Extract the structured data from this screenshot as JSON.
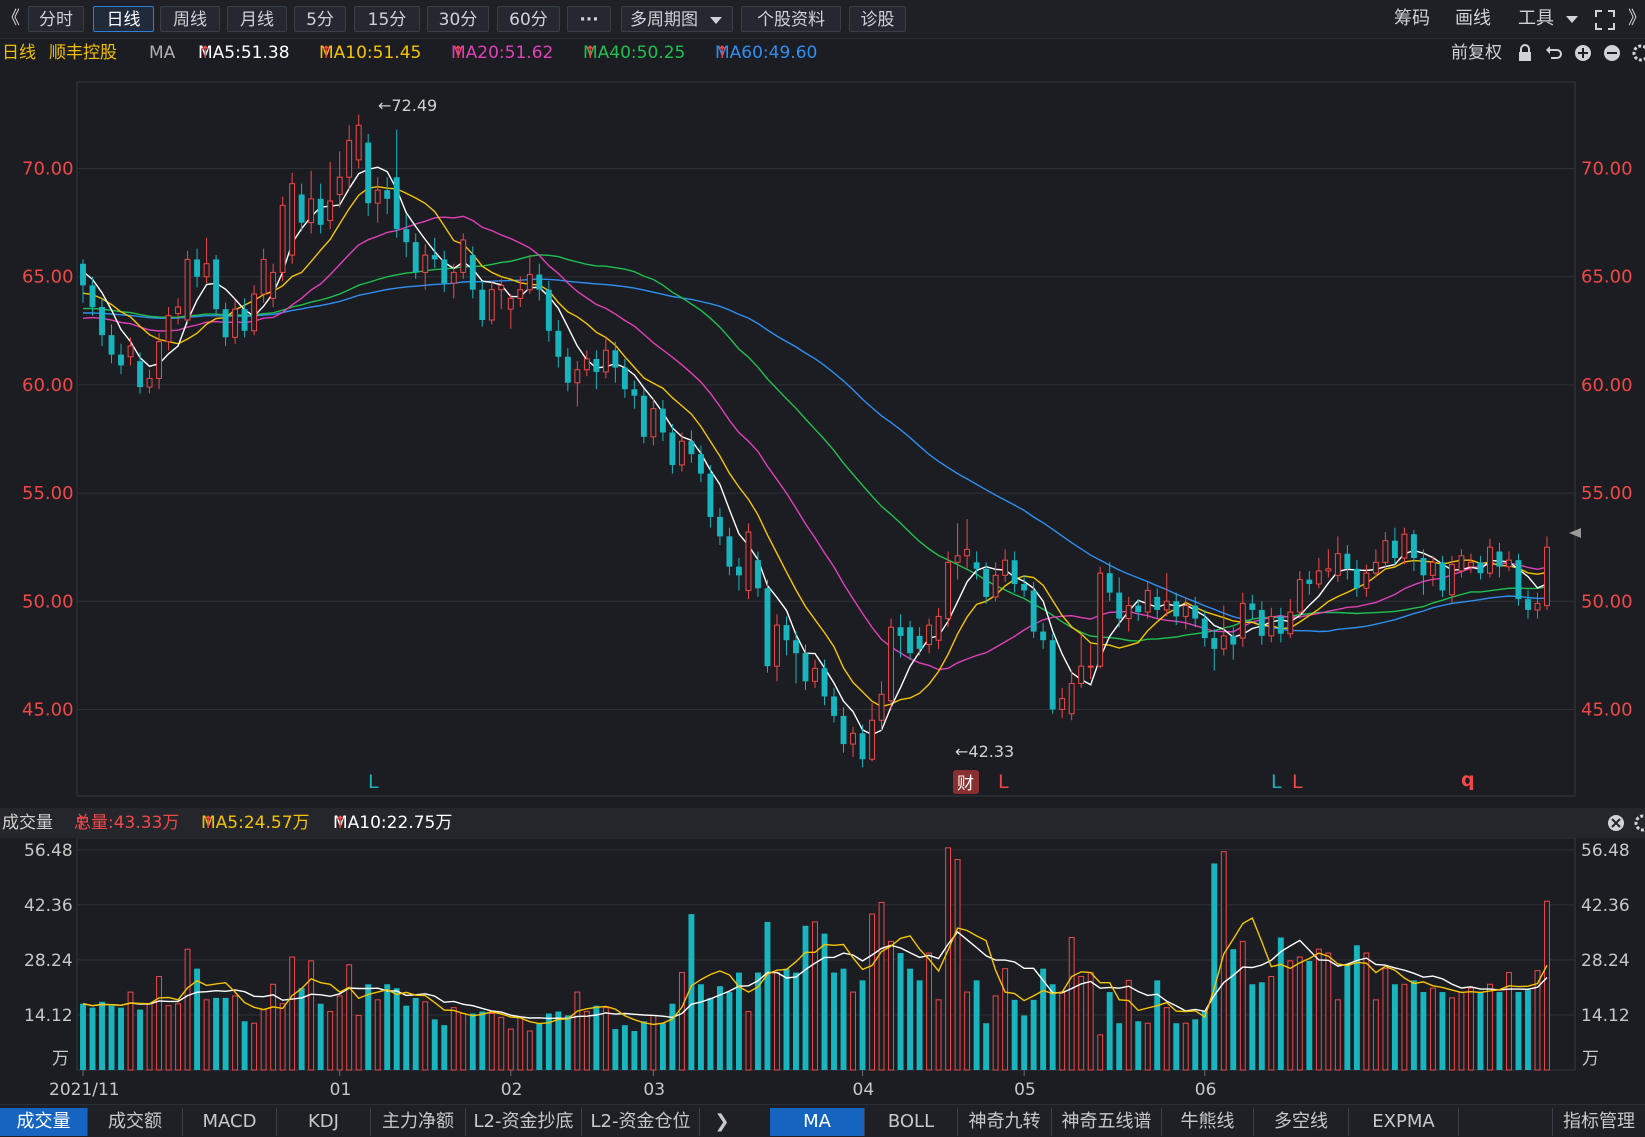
{
  "toolbar": {
    "collapse_glyph": "《",
    "expand_glyph": "》",
    "periods": [
      "分时",
      "日线",
      "周线",
      "月线",
      "5分",
      "15分",
      "30分",
      "60分"
    ],
    "more_label": "···",
    "multi_period_label": "多周期图",
    "profile_label": "个股资料",
    "diagnose_label": "诊股",
    "chips_label": "筹码",
    "draw_label": "画线",
    "tools_label": "工具"
  },
  "legend": {
    "period": "日线",
    "stock_name": "顺丰控股",
    "ma_label": "MA",
    "ma5": "MA5:51.38",
    "ma10": "MA10:51.45",
    "ma20": "MA20:51.62",
    "ma40": "MA40:50.25",
    "ma60": "MA60:49.60",
    "adjust_label": "前复权",
    "colors": {
      "ma5": "#ffffff",
      "ma10": "#f5c400",
      "ma20": "#e040b8",
      "ma40": "#20c050",
      "ma60": "#2f8ff0",
      "up": "#f04848",
      "down": "#19b5bf"
    }
  },
  "price_axis": {
    "ticks": [
      "70.00",
      "65.00",
      "60.00",
      "55.00",
      "50.00",
      "45.00"
    ],
    "tick_values": [
      70,
      65,
      60,
      55,
      50,
      45
    ],
    "ylim": [
      41,
      74
    ]
  },
  "annotations": {
    "high": "←72.49",
    "low": "←42.33",
    "fin_badge": "财",
    "markers": [
      "L",
      "L",
      "L",
      "L",
      "q"
    ]
  },
  "volume": {
    "title": "成交量",
    "total": "总量:43.33万",
    "ma5": "MA5:24.57万",
    "ma10": "MA10:22.75万",
    "ticks": [
      "56.48",
      "42.36",
      "28.24",
      "14.12"
    ],
    "tick_values": [
      56.48,
      42.36,
      28.24,
      14.12
    ],
    "unit": "万"
  },
  "date_axis": {
    "labels": [
      "2021/11",
      "01",
      "02",
      "03",
      "04",
      "05",
      "06"
    ]
  },
  "bottom_tabs": {
    "left": [
      "成交量",
      "成交额",
      "MACD",
      "KDJ",
      "主力净额",
      "L2-资金抄底",
      "L2-资金仓位"
    ],
    "arrow": "❯",
    "right": [
      "MA",
      "BOLL",
      "神奇九转",
      "神奇五线谱",
      "牛熊线",
      "多空线",
      "EXPMA"
    ],
    "manage": "指标管理"
  },
  "chart_data": {
    "type": "candlestick",
    "title": "顺丰控股 日线",
    "ylim": [
      41,
      74
    ],
    "high_label": 72.49,
    "low_label": 42.33,
    "candles": [
      [
        65.6,
        64.6,
        65.8,
        63.8
      ],
      [
        64.6,
        63.6,
        65.0,
        63.2
      ],
      [
        63.6,
        62.3,
        64.0,
        61.8
      ],
      [
        62.3,
        61.4,
        62.8,
        61.0
      ],
      [
        61.4,
        60.9,
        61.9,
        60.5
      ],
      [
        61.3,
        61.8,
        62.2,
        60.9
      ],
      [
        61.1,
        59.9,
        61.5,
        59.6
      ],
      [
        59.9,
        60.3,
        60.7,
        59.6
      ],
      [
        60.3,
        62.0,
        62.4,
        59.8
      ],
      [
        62.0,
        63.2,
        63.6,
        61.6
      ],
      [
        63.3,
        63.6,
        64.0,
        62.8
      ],
      [
        63.0,
        65.8,
        66.2,
        62.8
      ],
      [
        65.8,
        65.0,
        66.3,
        64.5
      ],
      [
        65.0,
        65.6,
        66.8,
        64.7
      ],
      [
        65.8,
        63.5,
        66.0,
        63.2
      ],
      [
        63.5,
        62.2,
        63.8,
        61.8
      ],
      [
        62.2,
        63.5,
        63.9,
        61.9
      ],
      [
        63.5,
        62.5,
        64.0,
        62.2
      ],
      [
        62.5,
        64.2,
        64.6,
        62.3
      ],
      [
        64.2,
        65.8,
        66.3,
        63.8
      ],
      [
        64.0,
        65.2,
        65.6,
        63.6
      ],
      [
        65.2,
        68.3,
        68.7,
        64.8
      ],
      [
        66.0,
        69.3,
        69.8,
        65.6
      ],
      [
        68.8,
        67.5,
        69.3,
        67.1
      ],
      [
        67.5,
        68.6,
        69.9,
        67.0
      ],
      [
        68.6,
        67.4,
        69.3,
        67.0
      ],
      [
        67.6,
        68.5,
        70.3,
        67.2
      ],
      [
        68.8,
        69.6,
        70.8,
        68.2
      ],
      [
        69.6,
        71.3,
        72.0,
        69.0
      ],
      [
        70.4,
        72.0,
        72.49,
        70.0
      ],
      [
        71.2,
        68.4,
        71.6,
        67.8
      ],
      [
        68.4,
        69.0,
        69.6,
        67.5
      ],
      [
        69.0,
        68.6,
        69.6,
        67.9
      ],
      [
        69.6,
        67.2,
        71.8,
        66.8
      ],
      [
        67.2,
        66.6,
        67.9,
        65.9
      ],
      [
        66.6,
        65.2,
        67.0,
        64.9
      ],
      [
        65.2,
        66.0,
        66.5,
        64.4
      ],
      [
        66.0,
        65.8,
        66.8,
        65.4
      ],
      [
        65.8,
        64.7,
        66.2,
        64.3
      ],
      [
        64.7,
        65.2,
        65.6,
        64.0
      ],
      [
        65.2,
        66.7,
        67.0,
        64.9
      ],
      [
        66.0,
        64.4,
        66.4,
        64.0
      ],
      [
        64.4,
        63.0,
        64.8,
        62.7
      ],
      [
        63.0,
        64.4,
        64.8,
        62.8
      ],
      [
        64.4,
        64.6,
        64.9,
        63.5
      ],
      [
        63.5,
        64.0,
        64.2,
        62.6
      ],
      [
        64.0,
        64.4,
        65.0,
        63.6
      ],
      [
        64.4,
        65.1,
        66.0,
        64.2
      ],
      [
        65.1,
        64.4,
        65.6,
        63.9
      ],
      [
        64.4,
        62.5,
        64.8,
        62.0
      ],
      [
        62.5,
        61.3,
        63.0,
        60.8
      ],
      [
        61.3,
        60.1,
        61.7,
        59.7
      ],
      [
        60.1,
        60.7,
        61.1,
        59.0
      ],
      [
        60.7,
        61.2,
        61.6,
        60.4
      ],
      [
        61.2,
        60.6,
        61.6,
        59.8
      ],
      [
        60.6,
        61.6,
        62.2,
        60.3
      ],
      [
        61.6,
        60.8,
        62.0,
        60.1
      ],
      [
        60.8,
        59.8,
        61.2,
        59.4
      ],
      [
        59.8,
        59.5,
        60.2,
        58.9
      ],
      [
        59.5,
        57.6,
        59.8,
        57.3
      ],
      [
        57.6,
        58.9,
        59.4,
        57.2
      ],
      [
        58.9,
        57.8,
        59.3,
        57.4
      ],
      [
        57.8,
        56.3,
        58.2,
        55.9
      ],
      [
        56.3,
        57.4,
        57.8,
        56.0
      ],
      [
        57.4,
        56.8,
        57.9,
        56.4
      ],
      [
        56.8,
        55.9,
        57.2,
        55.5
      ],
      [
        55.9,
        53.9,
        56.3,
        53.4
      ],
      [
        53.9,
        53.0,
        54.3,
        52.6
      ],
      [
        53.0,
        51.6,
        53.4,
        51.2
      ],
      [
        51.6,
        51.2,
        52.0,
        50.5
      ],
      [
        50.5,
        53.2,
        53.6,
        50.1
      ],
      [
        51.9,
        50.6,
        52.3,
        50.2
      ],
      [
        50.6,
        47.0,
        51.0,
        46.7
      ],
      [
        47.0,
        48.9,
        49.4,
        46.3
      ],
      [
        48.9,
        48.2,
        49.3,
        47.5
      ],
      [
        48.2,
        47.6,
        48.6,
        46.2
      ],
      [
        47.6,
        46.3,
        48.0,
        45.9
      ],
      [
        46.3,
        46.9,
        47.3,
        46.0
      ],
      [
        46.9,
        45.6,
        47.3,
        45.2
      ],
      [
        45.6,
        44.7,
        46.0,
        44.4
      ],
      [
        44.7,
        43.4,
        45.1,
        43.0
      ],
      [
        43.4,
        43.9,
        44.2,
        42.8
      ],
      [
        43.9,
        42.7,
        44.3,
        42.33
      ],
      [
        42.7,
        44.5,
        45.3,
        42.6
      ],
      [
        44.5,
        45.7,
        46.3,
        44.0
      ],
      [
        45.4,
        48.8,
        49.2,
        45.0
      ],
      [
        48.8,
        48.4,
        49.4,
        47.4
      ],
      [
        48.8,
        47.6,
        49.1,
        47.3
      ],
      [
        48.4,
        47.8,
        48.8,
        47.5
      ],
      [
        48.0,
        48.9,
        49.2,
        47.6
      ],
      [
        48.2,
        49.3,
        49.7,
        47.8
      ],
      [
        49.2,
        51.8,
        52.3,
        48.8
      ],
      [
        51.8,
        52.1,
        53.6,
        51.0
      ],
      [
        52.1,
        52.4,
        53.8,
        51.5
      ],
      [
        51.8,
        51.5,
        52.3,
        51.0
      ],
      [
        51.5,
        50.2,
        51.8,
        49.9
      ],
      [
        50.2,
        51.2,
        51.8,
        50.0
      ],
      [
        51.2,
        51.9,
        52.4,
        50.9
      ],
      [
        51.9,
        50.8,
        52.3,
        50.4
      ],
      [
        50.8,
        50.5,
        51.2,
        50.2
      ],
      [
        50.5,
        48.6,
        50.9,
        48.3
      ],
      [
        48.6,
        48.2,
        49.0,
        47.8
      ],
      [
        48.2,
        45.0,
        48.5,
        44.8
      ],
      [
        45.0,
        45.5,
        46.0,
        44.6
      ],
      [
        44.8,
        46.2,
        46.8,
        44.5
      ],
      [
        46.2,
        47.0,
        48.5,
        46.0
      ],
      [
        47.0,
        47.0,
        48.0,
        46.4
      ],
      [
        47.0,
        51.3,
        51.6,
        46.9
      ],
      [
        51.3,
        50.4,
        51.8,
        50.0
      ],
      [
        50.4,
        49.2,
        51.1,
        48.8
      ],
      [
        49.2,
        49.8,
        50.2,
        48.6
      ],
      [
        49.8,
        49.5,
        50.1,
        49.1
      ],
      [
        49.5,
        50.5,
        50.9,
        49.2
      ],
      [
        50.2,
        49.6,
        50.6,
        49.2
      ],
      [
        49.6,
        50.0,
        51.3,
        49.3
      ],
      [
        50.0,
        49.3,
        50.4,
        48.9
      ],
      [
        49.3,
        49.8,
        50.2,
        48.7
      ],
      [
        49.8,
        49.2,
        50.2,
        48.8
      ],
      [
        49.2,
        48.3,
        49.6,
        47.9
      ],
      [
        48.3,
        47.8,
        48.7,
        46.8
      ],
      [
        47.8,
        48.4,
        49.8,
        47.5
      ],
      [
        48.4,
        48.0,
        48.8,
        47.3
      ],
      [
        48.3,
        49.9,
        50.4,
        47.9
      ],
      [
        49.9,
        49.6,
        50.3,
        49.2
      ],
      [
        49.6,
        48.4,
        50.0,
        48.0
      ],
      [
        48.4,
        49.3,
        49.7,
        48.1
      ],
      [
        49.3,
        48.5,
        49.7,
        48.1
      ],
      [
        48.5,
        49.5,
        50.1,
        48.3
      ],
      [
        49.5,
        51.0,
        51.4,
        49.2
      ],
      [
        51.0,
        50.8,
        51.4,
        50.3
      ],
      [
        50.8,
        51.4,
        52.0,
        50.6
      ],
      [
        51.4,
        51.5,
        52.4,
        51.1
      ],
      [
        51.2,
        52.2,
        53.0,
        50.9
      ],
      [
        52.2,
        51.5,
        52.6,
        51.0
      ],
      [
        51.5,
        50.6,
        51.9,
        50.2
      ],
      [
        50.6,
        51.3,
        51.7,
        50.2
      ],
      [
        51.3,
        51.8,
        52.4,
        51.1
      ],
      [
        51.8,
        52.8,
        53.2,
        51.5
      ],
      [
        52.8,
        52.0,
        53.4,
        51.7
      ],
      [
        52.0,
        53.1,
        53.4,
        51.7
      ],
      [
        53.1,
        52.0,
        53.3,
        51.4
      ],
      [
        52.0,
        51.2,
        52.4,
        50.3
      ],
      [
        51.2,
        51.8,
        52.1,
        50.7
      ],
      [
        51.8,
        50.5,
        52.1,
        50.2
      ],
      [
        50.3,
        51.7,
        52.1,
        49.9
      ],
      [
        51.4,
        52.1,
        52.4,
        51.1
      ],
      [
        51.6,
        51.8,
        52.2,
        51.3
      ],
      [
        51.8,
        51.3,
        52.1,
        51.0
      ],
      [
        51.3,
        52.5,
        52.9,
        51.1
      ],
      [
        52.3,
        51.6,
        52.7,
        51.1
      ],
      [
        51.6,
        51.9,
        52.3,
        51.4
      ],
      [
        51.9,
        50.1,
        52.2,
        49.8
      ],
      [
        50.1,
        49.6,
        50.5,
        49.2
      ],
      [
        49.6,
        49.9,
        50.4,
        49.2
      ],
      [
        49.8,
        52.5,
        53.0,
        49.6
      ]
    ],
    "volume_values": [
      17.0,
      16.0,
      17.5,
      16.5,
      16.0,
      20.0,
      15.5,
      17.0,
      24.0,
      16.5,
      17.0,
      31.0,
      26.0,
      18.0,
      18.5,
      18.5,
      19.0,
      12.5,
      12.0,
      15.5,
      22.0,
      17.0,
      29.0,
      21.0,
      28.0,
      17.0,
      15.0,
      19.0,
      27.0,
      14.0,
      22.0,
      18.0,
      22.0,
      21.0,
      16.5,
      18.5,
      17.5,
      13.0,
      11.5,
      16.0,
      14.5,
      14.5,
      15.0,
      14.5,
      13.5,
      10.5,
      13.5,
      10.0,
      12.0,
      14.5,
      15.0,
      14.0,
      20.0,
      15.0,
      16.5,
      16.0,
      10.5,
      11.5,
      10.0,
      12.5,
      14.0,
      12.0,
      17.0,
      25.0,
      40.0,
      22.0,
      18.5,
      21.5,
      20.0,
      25.0,
      15.0,
      25.0,
      38.0,
      25.0,
      26.0,
      25.0,
      37.0,
      38.0,
      35.0,
      25.0,
      26.0,
      20.0,
      23.0,
      40.0,
      43.0,
      33.0,
      30.0,
      26.0,
      23.0,
      30.0,
      18.0,
      57.0,
      54.0,
      20.0,
      23.0,
      12.0,
      19.0,
      26.0,
      18.0,
      14.0,
      18.0,
      26.0,
      22.0,
      20.0,
      34.0,
      24.0,
      25.0,
      9.0,
      20.0,
      12.0,
      23.0,
      12.5,
      12.0,
      23.0,
      16.0,
      12.0,
      12.0,
      13.0,
      15.0,
      53.0,
      56.0,
      31.0,
      33.0,
      22.0,
      22.5,
      24.0,
      34.0,
      28.0,
      29.0,
      28.0,
      31.0,
      30.0,
      18.0,
      27.0,
      32.0,
      30.0,
      18.0,
      26.0,
      22.0,
      22.0,
      23.0,
      20.0,
      21.0,
      20.0,
      18.5,
      20.0,
      21.0,
      20.0,
      22.0,
      20.0,
      25.0,
      20.0,
      20.5,
      25.5,
      43.3
    ]
  }
}
